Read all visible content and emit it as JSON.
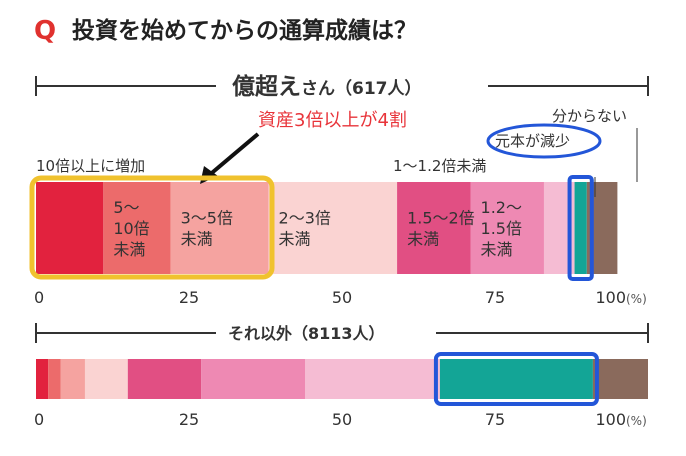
{
  "question": {
    "mark": "Q",
    "title": "投資を始めてからの通算成績は？"
  },
  "annotation": {
    "text": "資産3倍以上が4割",
    "color": "#e8343a"
  },
  "colors": {
    "highlight_yellow": "#f0c22e",
    "highlight_blue": "#2356d8"
  },
  "chart_data": [
    {
      "type": "bar",
      "orientation": "horizontal-stacked-100",
      "title": "億超えさん（617人）",
      "title_main": "億超え",
      "title_rest": "さん（617人）",
      "x": {
        "range": [
          0,
          100
        ],
        "ticks": [
          "0",
          "25",
          "50",
          "75",
          "100"
        ],
        "unit": "(%)"
      },
      "categories": [
        "10倍以上に増加",
        "5〜10倍未満",
        "3〜5倍未満",
        "2〜3倍未満",
        "1.5〜2倍未満",
        "1.2〜1.5倍未満",
        "1〜1.2倍未満",
        "元本が減少",
        "分からない"
      ],
      "values": [
        11,
        11,
        16,
        21,
        12,
        12,
        5,
        2,
        5
      ],
      "segment_labels": [
        [],
        [
          "5〜",
          "10倍",
          "未満"
        ],
        [
          "3〜5倍",
          "未満"
        ],
        [
          "2〜3倍",
          "未満"
        ],
        [
          "1.5〜2倍",
          "未満"
        ],
        [
          "1.2〜",
          "1.5倍",
          "未満"
        ],
        [],
        [],
        []
      ],
      "callouts": {
        "top_left": "10倍以上に増加",
        "top_mid": "1〜1.2倍未満",
        "circled": "元本が減少",
        "top_right": "分からない"
      },
      "colors": [
        "#e2223e",
        "#ec6b6b",
        "#f5a3a0",
        "#fad3d2",
        "#e14f83",
        "#ee89b3",
        "#f5bcd3",
        "#13a596",
        "#8a6a5c"
      ]
    },
    {
      "type": "bar",
      "orientation": "horizontal-stacked-100",
      "title": "それ以外（8113人）",
      "x": {
        "range": [
          0,
          100
        ],
        "ticks": [
          "0",
          "25",
          "50",
          "75",
          "100"
        ],
        "unit": "(%)"
      },
      "categories": [
        "10倍以上に増加",
        "5〜10倍未満",
        "3〜5倍未満",
        "2〜3倍未満",
        "1.5〜2倍未満",
        "1.2〜1.5倍未満",
        "1〜1.2倍未満",
        "元本が減少",
        "分からない"
      ],
      "values": [
        2,
        2,
        4,
        7,
        12,
        17,
        22,
        25,
        9
      ],
      "colors": [
        "#e2223e",
        "#ec6b6b",
        "#f5a3a0",
        "#fad3d2",
        "#e14f83",
        "#ee89b3",
        "#f5bcd3",
        "#13a596",
        "#8a6a5c"
      ]
    }
  ]
}
